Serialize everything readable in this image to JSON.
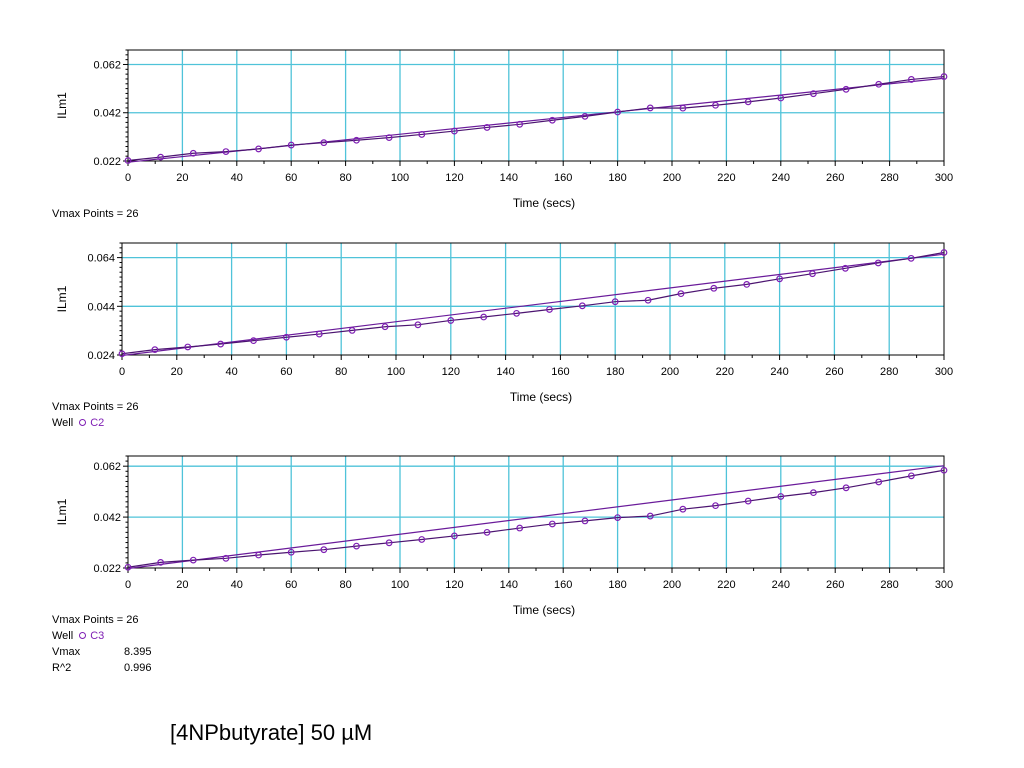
{
  "chart_data": [
    {
      "type": "line",
      "xlabel": "Time (secs)",
      "ylabel": "ILm1",
      "xlim": [
        0,
        300
      ],
      "ylim": [
        0.022,
        0.068
      ],
      "xticks": [
        "0",
        "20",
        "40",
        "60",
        "80",
        "100",
        "120",
        "140",
        "160",
        "180",
        "200",
        "220",
        "240",
        "260",
        "280",
        "300"
      ],
      "yticks": [
        "0.022",
        "0.042",
        "0.062"
      ],
      "ytick_values": [
        0.022,
        0.042,
        0.062
      ],
      "grid": true,
      "series": [
        {
          "x": [
            0,
            12,
            24,
            36,
            48,
            60,
            72,
            84,
            96,
            108,
            120,
            132,
            144,
            156,
            168,
            180,
            192,
            204,
            216,
            228,
            240,
            252,
            264,
            276,
            288,
            300
          ],
          "y": [
            0.0222,
            0.0236,
            0.0252,
            0.0259,
            0.027,
            0.0286,
            0.0296,
            0.0306,
            0.0317,
            0.033,
            0.0344,
            0.0359,
            0.0372,
            0.0389,
            0.0405,
            0.0423,
            0.044,
            0.0439,
            0.0451,
            0.0465,
            0.0481,
            0.0499,
            0.0517,
            0.0538,
            0.0558,
            0.057
          ]
        }
      ],
      "fit": {
        "x": [
          0,
          300
        ],
        "y": [
          0.0215,
          0.0563
        ]
      },
      "info": [
        {
          "key": "Vmax Points",
          "value": "= 26"
        }
      ]
    },
    {
      "type": "line",
      "xlabel": "Time (secs)",
      "ylabel": "ILm1",
      "xlim": [
        0,
        300
      ],
      "ylim": [
        0.024,
        0.07
      ],
      "xticks": [
        "0",
        "20",
        "40",
        "60",
        "80",
        "100",
        "120",
        "140",
        "160",
        "180",
        "200",
        "220",
        "240",
        "260",
        "280",
        "300"
      ],
      "yticks": [
        "0.024",
        "0.044",
        "0.064"
      ],
      "ytick_values": [
        0.024,
        0.044,
        0.064
      ],
      "grid": true,
      "series": [
        {
          "x": [
            0,
            12,
            24,
            36,
            48,
            60,
            72,
            84,
            96,
            108,
            120,
            132,
            144,
            156,
            168,
            180,
            192,
            204,
            216,
            228,
            240,
            252,
            264,
            276,
            288,
            300
          ],
          "y": [
            0.0245,
            0.0262,
            0.0273,
            0.0285,
            0.0299,
            0.0313,
            0.0326,
            0.0341,
            0.0356,
            0.0364,
            0.0382,
            0.0396,
            0.0411,
            0.0427,
            0.0442,
            0.0459,
            0.0465,
            0.0492,
            0.0514,
            0.053,
            0.0553,
            0.0574,
            0.0596,
            0.0618,
            0.0637,
            0.0661
          ]
        }
      ],
      "fit": {
        "x": [
          0,
          300
        ],
        "y": [
          0.0238,
          0.0654
        ]
      },
      "info": [
        {
          "key": "Vmax Points",
          "value": "= 26"
        },
        {
          "key": "Well",
          "value": "C2",
          "marker": true
        }
      ]
    },
    {
      "type": "line",
      "xlabel": "Time (secs)",
      "ylabel": "ILm1",
      "xlim": [
        0,
        300
      ],
      "ylim": [
        0.022,
        0.066
      ],
      "xticks": [
        "0",
        "20",
        "40",
        "60",
        "80",
        "100",
        "120",
        "140",
        "160",
        "180",
        "200",
        "220",
        "240",
        "260",
        "280",
        "300"
      ],
      "yticks": [
        "0.022",
        "0.042",
        "0.062"
      ],
      "ytick_values": [
        0.022,
        0.042,
        0.062
      ],
      "grid": true,
      "series": [
        {
          "x": [
            0,
            12,
            24,
            36,
            48,
            60,
            72,
            84,
            96,
            108,
            120,
            132,
            144,
            156,
            168,
            180,
            192,
            204,
            216,
            228,
            240,
            252,
            264,
            276,
            288,
            300
          ],
          "y": [
            0.0223,
            0.0242,
            0.0251,
            0.0258,
            0.0271,
            0.0282,
            0.0292,
            0.0306,
            0.0319,
            0.0332,
            0.0346,
            0.036,
            0.0377,
            0.0393,
            0.0405,
            0.0418,
            0.0424,
            0.0451,
            0.0465,
            0.0483,
            0.0501,
            0.0516,
            0.0535,
            0.0558,
            0.0582,
            0.0604
          ]
        }
      ],
      "fit": {
        "x": [
          0,
          300
        ],
        "y": [
          0.0218,
          0.0622
        ]
      },
      "info": [
        {
          "key": "Vmax Points",
          "value": "= 26"
        },
        {
          "key": "Well",
          "value": "C3",
          "marker": true
        },
        {
          "key": "Vmax",
          "value": "8.395"
        },
        {
          "key": "R^2",
          "value": "0.996"
        }
      ]
    }
  ],
  "caption": "[4NPbutyrate] 50 µM",
  "colors": {
    "grid": "#4fc3d9",
    "data_line": "#4b1470",
    "marker": "#7f1fb4",
    "fit_line": "#6a1b9a",
    "axis": "#000000"
  }
}
